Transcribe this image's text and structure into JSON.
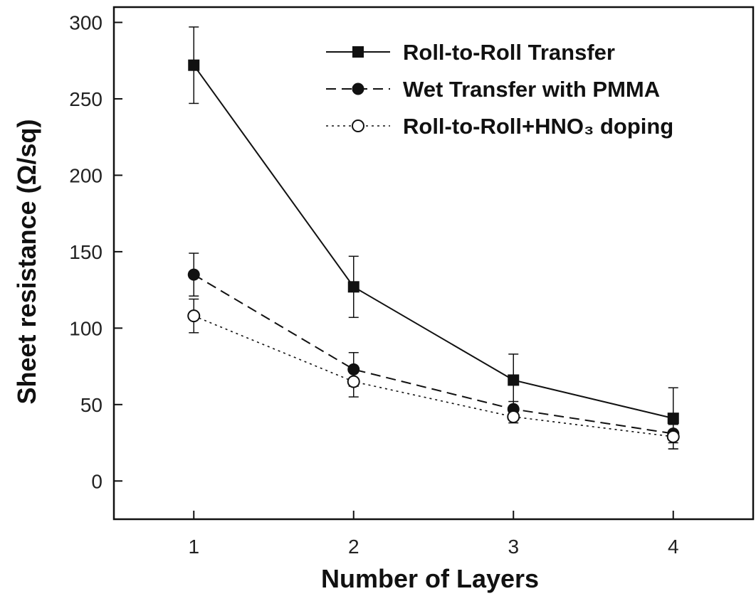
{
  "chart_data": {
    "type": "line",
    "title": "",
    "xlabel": "Number of Layers",
    "ylabel": "Sheet resistance (Ω/sq)",
    "x": [
      1,
      2,
      3,
      4
    ],
    "x_ticks": [
      "1",
      "2",
      "3",
      "4"
    ],
    "xlim": [
      0.5,
      4.5
    ],
    "y_ticks": [
      "0",
      "50",
      "100",
      "150",
      "200",
      "250",
      "300"
    ],
    "ylim": [
      -25,
      310
    ],
    "grid": false,
    "legend_position": "top-right",
    "series": [
      {
        "name": "Roll-to-Roll Transfer",
        "values": [
          272,
          127,
          66,
          41
        ],
        "errors": [
          25,
          20,
          17,
          20
        ],
        "marker": "filled-square",
        "line_style": "solid",
        "color": "#111111"
      },
      {
        "name": "Wet Transfer with PMMA",
        "values": [
          135,
          73,
          47,
          31
        ],
        "errors": [
          14,
          11,
          5,
          6
        ],
        "marker": "filled-circle",
        "line_style": "dashed",
        "color": "#111111"
      },
      {
        "name": "Roll-to-Roll+HNO₃ doping",
        "values": [
          108,
          65,
          42,
          29
        ],
        "errors": [
          11,
          10,
          4,
          8
        ],
        "marker": "open-circle",
        "line_style": "dotted",
        "color": "#111111"
      }
    ]
  }
}
